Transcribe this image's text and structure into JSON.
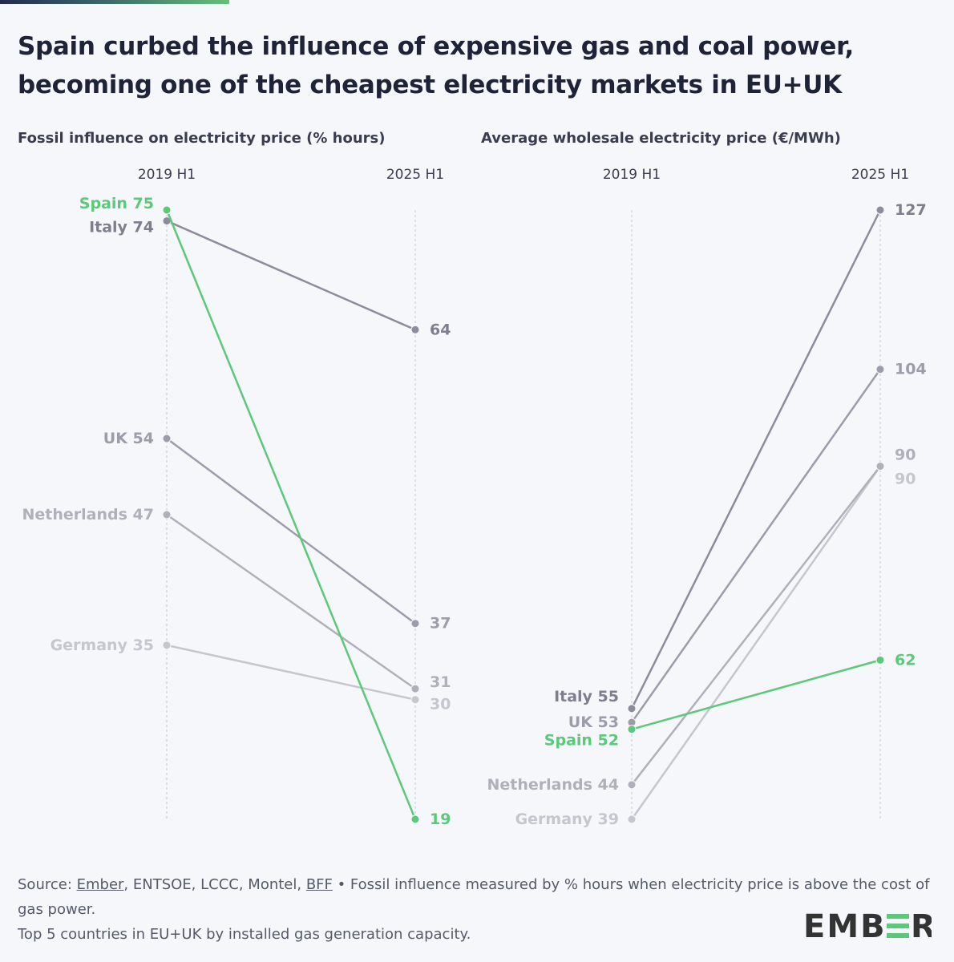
{
  "title": "Spain curbed the influence of expensive gas and coal power, becoming one of the cheapest electricity markets in EU+UK",
  "footer": {
    "source_prefix": "Source: ",
    "source_link1": "Ember",
    "source_mid": ", ENTSOE, LCCC, Montel, ",
    "source_link2": "BFF",
    "source_note": " • Fossil influence measured by % hours when electricity price is above the cost of gas power.",
    "line2": "Top 5 countries in EU+UK by installed gas generation capacity."
  },
  "logo": "EMBER",
  "colors": {
    "Spain": "#5cc97a",
    "Italy": "#8c8c9c",
    "UK": "#9c9caa",
    "Netherlands": "#b0b0bb",
    "Germany": "#c6c6ce",
    "accent": "#5cc97a"
  },
  "chart_data": [
    {
      "type": "slope",
      "title": "Fossil influence on electricity price (% hours)",
      "categories": [
        "2019 H1",
        "2025 H1"
      ],
      "ylim": [
        19,
        75
      ],
      "series": [
        {
          "name": "Spain",
          "values": [
            75,
            19
          ]
        },
        {
          "name": "Italy",
          "values": [
            74,
            64
          ]
        },
        {
          "name": "UK",
          "values": [
            54,
            37
          ]
        },
        {
          "name": "Netherlands",
          "values": [
            47,
            31
          ]
        },
        {
          "name": "Germany",
          "values": [
            35,
            30
          ]
        }
      ]
    },
    {
      "type": "slope",
      "title": "Average wholesale electricity price (€/MWh)",
      "categories": [
        "2019 H1",
        "2025 H1"
      ],
      "ylim": [
        39,
        127
      ],
      "series": [
        {
          "name": "Italy",
          "values": [
            55,
            127
          ]
        },
        {
          "name": "UK",
          "values": [
            53,
            104
          ]
        },
        {
          "name": "Spain",
          "values": [
            52,
            62
          ]
        },
        {
          "name": "Netherlands",
          "values": [
            44,
            90
          ]
        },
        {
          "name": "Germany",
          "values": [
            39,
            90
          ]
        }
      ]
    }
  ]
}
